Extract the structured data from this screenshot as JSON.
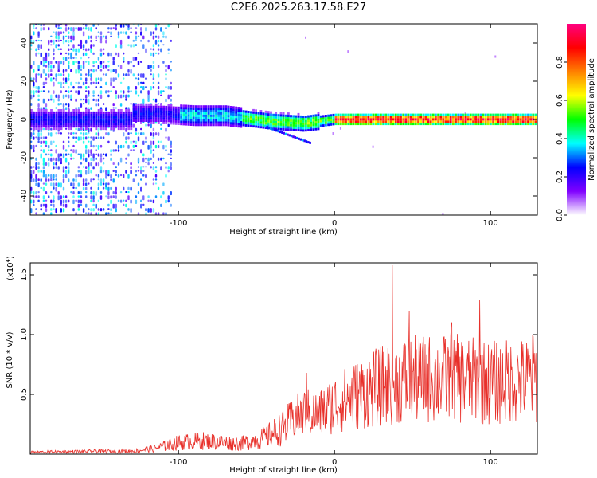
{
  "title": "C2E6.2025.263.17.58.E27",
  "chart_data": [
    {
      "type": "heatmap",
      "name": "spectrogram",
      "xlabel": "Height of straight line (km)",
      "ylabel": "Frequency (Hz)",
      "xlim": [
        -195,
        130
      ],
      "ylim": [
        -50,
        50
      ],
      "xticks": [
        -100,
        0,
        100
      ],
      "xtick_labels": [
        "-100",
        "0",
        "100"
      ],
      "yticks": [
        -40,
        -20,
        0,
        20,
        40
      ],
      "ytick_labels": [
        "-40",
        "-20",
        "0",
        "20",
        "40"
      ],
      "ridge": [
        {
          "x": -130,
          "f": 3
        },
        {
          "x": -110,
          "f": 3
        },
        {
          "x": -90,
          "f": 2
        },
        {
          "x": -70,
          "f": 2
        },
        {
          "x": -60,
          "f": 1
        },
        {
          "x": -40,
          "f": -1
        },
        {
          "x": -20,
          "f": -2
        },
        {
          "x": 0,
          "f": 0
        },
        {
          "x": 50,
          "f": 0
        },
        {
          "x": 130,
          "f": 0
        }
      ],
      "colorbar": {
        "label": "Normalized spectral amplitude",
        "range": [
          0,
          1
        ],
        "ticks": [
          0.0,
          0.2,
          0.4,
          0.6,
          0.8
        ],
        "tick_labels": [
          "0.0",
          "0.2",
          "0.4",
          "0.6",
          "0.8"
        ],
        "colors": [
          "#ffffff",
          "#8000ff",
          "#0000ff",
          "#00ffff",
          "#00ff00",
          "#ffff00",
          "#ff8000",
          "#ff0000",
          "#ff0080"
        ]
      }
    },
    {
      "type": "line",
      "name": "snr",
      "xlabel": "Height of straight line (km)",
      "ylabel": "SNR (10 * v/v)",
      "scale_label": "(x10",
      "scale_exp": "4",
      "scale_close": ")",
      "xlim": [
        -195,
        130
      ],
      "ylim": [
        0,
        1.6
      ],
      "xticks": [
        -100,
        0,
        100
      ],
      "xtick_labels": [
        "-100",
        "0",
        "100"
      ],
      "yticks": [
        0.5,
        1.0,
        1.5
      ],
      "ytick_labels": [
        "0.5",
        "1.0",
        "1.5"
      ],
      "color": "#e8302a",
      "envelope": [
        {
          "x": -195,
          "y": 0.02
        },
        {
          "x": -150,
          "y": 0.03
        },
        {
          "x": -130,
          "y": 0.03
        },
        {
          "x": -115,
          "y": 0.06
        },
        {
          "x": -100,
          "y": 0.12
        },
        {
          "x": -85,
          "y": 0.14
        },
        {
          "x": -70,
          "y": 0.12
        },
        {
          "x": -60,
          "y": 0.11
        },
        {
          "x": -45,
          "y": 0.17
        },
        {
          "x": -30,
          "y": 0.3
        },
        {
          "x": -20,
          "y": 0.4
        },
        {
          "x": -10,
          "y": 0.38
        },
        {
          "x": 0,
          "y": 0.48
        },
        {
          "x": 20,
          "y": 0.6
        },
        {
          "x": 40,
          "y": 0.7
        },
        {
          "x": 60,
          "y": 0.72
        },
        {
          "x": 80,
          "y": 0.72
        },
        {
          "x": 100,
          "y": 0.68
        },
        {
          "x": 120,
          "y": 0.7
        },
        {
          "x": 130,
          "y": 0.72
        }
      ],
      "peaks": [
        {
          "x": 37,
          "y": 1.58
        },
        {
          "x": 93,
          "y": 1.29
        },
        {
          "x": 75,
          "y": 1.1
        },
        {
          "x": 127,
          "y": 1.0
        },
        {
          "x": -18,
          "y": 0.68
        },
        {
          "x": 48,
          "y": 1.2
        }
      ]
    }
  ]
}
